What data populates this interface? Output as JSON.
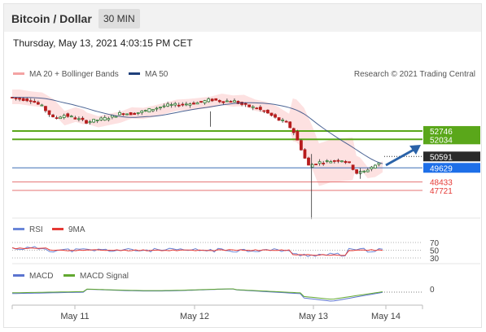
{
  "header": {
    "title": "Bitcoin / Dollar",
    "timeframe": "30 MIN"
  },
  "timestamp": "Thursday, May 13, 2021 4:03:15 PM CET",
  "credit": "Research © 2021 Trading Central",
  "legend": {
    "ma20": "MA 20 + Bollinger Bands",
    "ma50": "MA 50",
    "rsi": "RSI",
    "ma9": "9MA",
    "macd": "MACD",
    "macd_signal": "MACD Signal"
  },
  "colors": {
    "candle_up": "#2e7d32",
    "candle_down": "#b71c1c",
    "bollinger": "#f8a8a8",
    "ma50": "#1f3f7a",
    "resistance": "#5aa71a",
    "support": "#e57373",
    "pivot": "#3f6fb5",
    "last_price": "#2a2a2a",
    "rsi": "#6a86d8",
    "rsi_ma": "#e53935",
    "macd": "#5b74cf",
    "macd_signal": "#62a830",
    "target_arrow": "#2a62a8"
  },
  "chart_data": {
    "type": "candlestick",
    "x_tick_labels": [
      "May 11",
      "May 12",
      "May 13",
      "May 14"
    ],
    "price_levels": [
      {
        "value": 52746,
        "label": "52746",
        "kind": "resistance"
      },
      {
        "value": 52034,
        "label": "52034",
        "kind": "resistance"
      },
      {
        "value": 50591,
        "label": "50591",
        "kind": "last"
      },
      {
        "value": 49629,
        "label": "49629",
        "kind": "pivot"
      },
      {
        "value": 48433,
        "label": "48433",
        "kind": "support"
      },
      {
        "value": 47721,
        "label": "47721",
        "kind": "support"
      }
    ],
    "price_series": [
      {
        "t": 0,
        "v": 55600
      },
      {
        "t": 3,
        "v": 55450
      },
      {
        "t": 6,
        "v": 55350
      },
      {
        "t": 9,
        "v": 54800
      },
      {
        "t": 12,
        "v": 53800
      },
      {
        "t": 15,
        "v": 54100
      },
      {
        "t": 18,
        "v": 53800
      },
      {
        "t": 21,
        "v": 53500
      },
      {
        "t": 24,
        "v": 53700
      },
      {
        "t": 27,
        "v": 53900
      },
      {
        "t": 30,
        "v": 54250
      },
      {
        "t": 33,
        "v": 54200
      },
      {
        "t": 36,
        "v": 54400
      },
      {
        "t": 39,
        "v": 54650
      },
      {
        "t": 42,
        "v": 54900
      },
      {
        "t": 45,
        "v": 54950
      },
      {
        "t": 48,
        "v": 55050
      },
      {
        "t": 51,
        "v": 55150
      },
      {
        "t": 54,
        "v": 55400
      },
      {
        "t": 57,
        "v": 55250
      },
      {
        "t": 60,
        "v": 55300
      },
      {
        "t": 63,
        "v": 54900
      },
      {
        "t": 66,
        "v": 54700
      },
      {
        "t": 69,
        "v": 54300
      },
      {
        "t": 72,
        "v": 53700
      },
      {
        "t": 74,
        "v": 53500
      },
      {
        "t": 76,
        "v": 52800
      },
      {
        "t": 78,
        "v": 51400
      },
      {
        "t": 80,
        "v": 49800
      },
      {
        "t": 83,
        "v": 50100
      },
      {
        "t": 86,
        "v": 50200
      },
      {
        "t": 89,
        "v": 50300
      },
      {
        "t": 91,
        "v": 50000
      },
      {
        "t": 93,
        "v": 49200
      },
      {
        "t": 95,
        "v": 49300
      },
      {
        "t": 97,
        "v": 49700
      },
      {
        "t": 99,
        "v": 50000
      }
    ],
    "rsi": {
      "levels": [
        70,
        50,
        30
      ]
    },
    "macd": {
      "levels": [
        0
      ]
    }
  }
}
